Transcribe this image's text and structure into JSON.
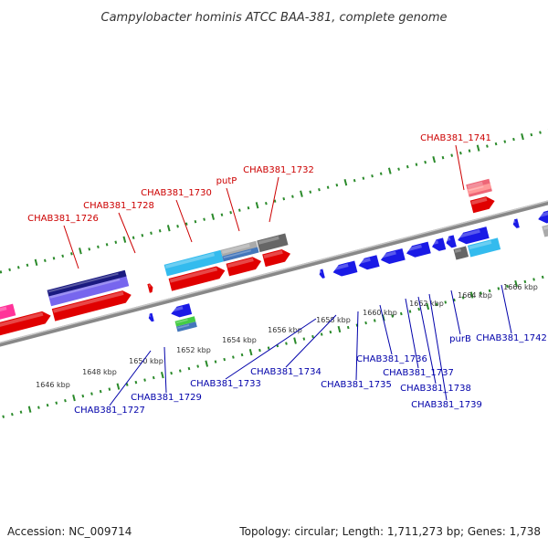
{
  "title": "Campylobacter hominis ATCC BAA-381, complete genome",
  "footer": {
    "accession": "Accession: NC_009714",
    "summary": "Topology: circular; Length: 1,711,273 bp; Genes: 1,738"
  },
  "colors": {
    "forward_label": "#cc0000",
    "reverse_label": "#0000aa",
    "tick": "#2a8a2a",
    "backbone": "#888888"
  },
  "kbp_ticks": [
    {
      "label": "1646 kbp"
    },
    {
      "label": "1648 kbp"
    },
    {
      "label": "1650 kbp"
    },
    {
      "label": "1652 kbp"
    },
    {
      "label": "1654 kbp"
    },
    {
      "label": "1656 kbp"
    },
    {
      "label": "1658 kbp"
    },
    {
      "label": "1660 kbp"
    },
    {
      "label": "1662 kbp"
    },
    {
      "label": "1664 kbp"
    },
    {
      "label": "1666 kbp"
    }
  ],
  "forward_labels": [
    {
      "text": "CHAB381_1726"
    },
    {
      "text": "CHAB381_1728"
    },
    {
      "text": "CHAB381_1730"
    },
    {
      "text": "putP"
    },
    {
      "text": "CHAB381_1732"
    },
    {
      "text": "CHAB381_1741"
    }
  ],
  "reverse_labels": [
    {
      "text": "CHAB381_1727"
    },
    {
      "text": "CHAB381_1729"
    },
    {
      "text": "CHAB381_1733"
    },
    {
      "text": "CHAB381_1734"
    },
    {
      "text": "CHAB381_1735"
    },
    {
      "text": "CHAB381_1736"
    },
    {
      "text": "CHAB381_1737"
    },
    {
      "text": "CHAB381_1738"
    },
    {
      "text": "CHAB381_1739"
    },
    {
      "text": "purB"
    },
    {
      "text": "CHAB381_1742"
    }
  ]
}
